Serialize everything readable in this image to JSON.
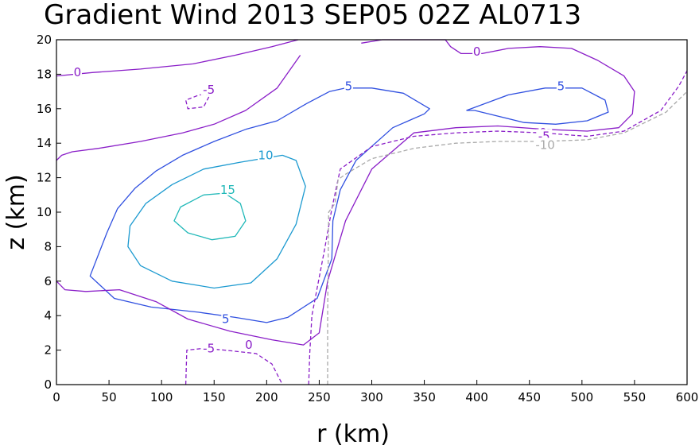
{
  "chart_data": {
    "type": "contour",
    "title": "Gradient Wind 2013 SEP05 02Z   AL0713",
    "xlabel": "r (km)",
    "ylabel": "z (km)",
    "xlim": [
      0,
      600
    ],
    "ylim": [
      0,
      20
    ],
    "xticks": [
      0,
      50,
      100,
      150,
      200,
      250,
      300,
      350,
      400,
      450,
      500,
      550,
      600
    ],
    "yticks": [
      0,
      2,
      4,
      6,
      8,
      10,
      12,
      14,
      16,
      18,
      20
    ],
    "grid": false,
    "contours": [
      {
        "level": "15",
        "color": "#20b8b8",
        "dash": false,
        "x": [
          140,
          118,
          112,
          125,
          148,
          170,
          180,
          175,
          160,
          140
        ],
        "y": [
          11.0,
          10.3,
          9.5,
          8.8,
          8.4,
          8.6,
          9.5,
          10.5,
          11.1,
          11.0
        ],
        "labels": [
          {
            "text": "15",
            "x": 163,
            "y": 11.3
          }
        ]
      },
      {
        "level": "10",
        "color": "#1c9ad0",
        "dash": false,
        "x": [
          215,
          175,
          140,
          110,
          85,
          70,
          68,
          80,
          110,
          150,
          185,
          210,
          228,
          237,
          228,
          215
        ],
        "y": [
          13.3,
          12.9,
          12.5,
          11.6,
          10.5,
          9.2,
          8.0,
          6.9,
          6.0,
          5.6,
          5.9,
          7.3,
          9.3,
          11.5,
          13.0,
          13.3
        ],
        "labels": [
          {
            "text": "10",
            "x": 199,
            "y": 13.3
          }
        ]
      },
      {
        "level": "5",
        "color": "#3050e0",
        "dash": false,
        "x": [
          180,
          150,
          120,
          95,
          75,
          58,
          48,
          32,
          55,
          90,
          135,
          170,
          200,
          220,
          248,
          262,
          263,
          270,
          285,
          320,
          350,
          355,
          330,
          300,
          275,
          260,
          238,
          210,
          180
        ],
        "y": [
          14.8,
          14.1,
          13.3,
          12.4,
          11.4,
          10.2,
          8.8,
          6.3,
          5.0,
          4.5,
          4.2,
          3.9,
          3.6,
          3.9,
          5.0,
          7.3,
          9.5,
          11.3,
          13.0,
          14.9,
          15.7,
          16.0,
          16.9,
          17.2,
          17.2,
          17.0,
          16.3,
          15.3,
          14.8
        ],
        "labels": [
          {
            "text": "5",
            "x": 278,
            "y": 17.3
          },
          {
            "text": "5",
            "x": 161,
            "y": 3.8
          }
        ]
      },
      {
        "level": "5",
        "color": "#3050e0",
        "dash": false,
        "x": [
          390,
          430,
          465,
          500,
          522,
          525,
          505,
          475,
          445,
          418,
          398,
          390
        ],
        "y": [
          15.9,
          16.8,
          17.2,
          17.2,
          16.5,
          15.8,
          15.3,
          15.1,
          15.2,
          15.6,
          15.9,
          15.9
        ],
        "labels": [
          {
            "text": "5",
            "x": 480,
            "y": 17.3
          }
        ]
      },
      {
        "level": "0",
        "color": "#8a1ec8",
        "dash": false,
        "x": [
          0,
          8,
          28,
          60,
          95,
          125,
          165,
          205,
          235,
          250,
          258,
          275,
          300,
          340,
          380,
          420,
          465,
          505,
          535,
          548,
          550,
          540,
          515,
          490,
          460,
          430,
          405,
          385,
          375,
          370,
          355,
          340,
          310,
          290
        ],
        "y": [
          6.0,
          5.5,
          5.4,
          5.5,
          4.8,
          3.8,
          3.1,
          2.6,
          2.3,
          3.0,
          6.0,
          9.5,
          12.5,
          14.6,
          14.9,
          15.0,
          14.8,
          14.7,
          14.9,
          15.7,
          17.0,
          17.9,
          18.8,
          19.5,
          19.6,
          19.5,
          19.2,
          19.2,
          19.6,
          20.0,
          20.0,
          20.0,
          20.0,
          19.8
        ],
        "labels": [
          {
            "text": "0",
            "x": 183,
            "y": 2.3
          },
          {
            "text": "0",
            "x": 463,
            "y": 14.6
          },
          {
            "text": "0",
            "x": 400,
            "y": 19.3
          }
        ]
      },
      {
        "level": "0",
        "color": "#8a1ec8",
        "dash": false,
        "x": [
          0,
          5,
          15,
          40,
          80,
          120,
          150,
          180,
          210,
          232
        ],
        "y": [
          13.0,
          13.3,
          13.5,
          13.7,
          14.1,
          14.6,
          15.1,
          15.9,
          17.2,
          19.1
        ],
        "labels": []
      },
      {
        "level": "0",
        "color": "#8a1ec8",
        "dash": false,
        "x": [
          0,
          35,
          80,
          130,
          170,
          205,
          230
        ],
        "y": [
          17.9,
          18.1,
          18.3,
          18.6,
          19.1,
          19.6,
          20.0
        ],
        "labels": [
          {
            "text": "0",
            "x": 20,
            "y": 18.1
          }
        ]
      },
      {
        "level": "-5",
        "color": "#8a1ec8",
        "dash": true,
        "x": [
          240,
          241,
          243,
          255,
          262,
          270,
          300,
          340,
          380,
          420,
          462,
          505,
          540,
          575,
          592,
          600
        ],
        "y": [
          0.0,
          1.8,
          4.0,
          7.8,
          10.2,
          12.5,
          13.8,
          14.4,
          14.6,
          14.7,
          14.6,
          14.4,
          14.7,
          15.9,
          17.3,
          18.2
        ],
        "labels": [
          {
            "text": "-5",
            "x": 464,
            "y": 14.4
          }
        ]
      },
      {
        "level": "-5",
        "color": "#8a1ec8",
        "dash": true,
        "x": [
          123,
          124,
          140,
          160,
          190,
          205,
          215
        ],
        "y": [
          0.0,
          2.0,
          2.1,
          2.0,
          1.8,
          1.2,
          0.0
        ],
        "labels": [
          {
            "text": "-5",
            "x": 145,
            "y": 2.1
          }
        ]
      },
      {
        "level": "-5",
        "color": "#8a1ec8",
        "dash": true,
        "x": [
          146,
          136,
          123,
          125,
          140,
          146,
          146
        ],
        "y": [
          16.8,
          16.8,
          16.5,
          16.0,
          16.1,
          16.8,
          16.8
        ],
        "labels": [
          {
            "text": "-5",
            "x": 145,
            "y": 17.1
          }
        ]
      },
      {
        "level": "-10",
        "color": "#a9a9a9",
        "dash": true,
        "x": [
          258,
          258,
          259,
          265,
          268,
          275,
          300,
          340,
          380,
          420,
          462,
          505,
          540,
          580,
          600
        ],
        "y": [
          0.0,
          4.0,
          10.0,
          10.5,
          11.9,
          12.2,
          13.1,
          13.7,
          14.0,
          14.1,
          14.1,
          14.2,
          14.6,
          15.8,
          17.0
        ],
        "labels": [
          {
            "text": "-10",
            "x": 465,
            "y": 13.9
          }
        ]
      }
    ]
  }
}
